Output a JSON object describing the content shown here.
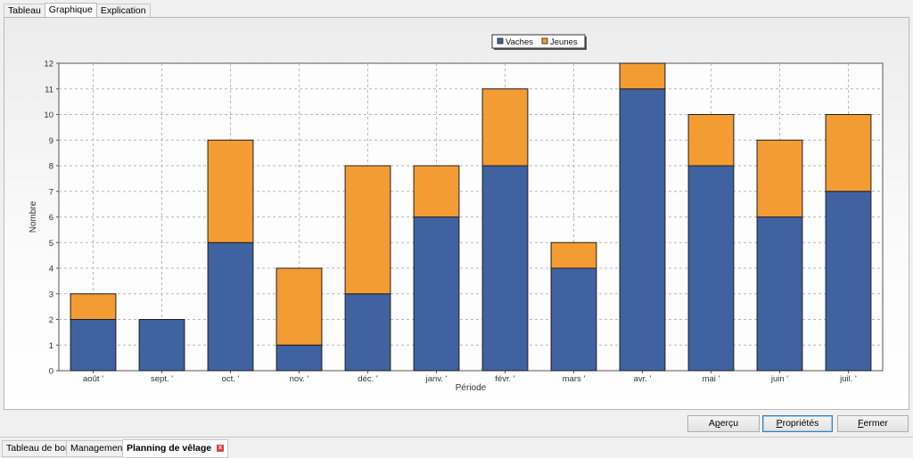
{
  "tabs": [
    {
      "label": "Tableau"
    },
    {
      "label": "Graphique"
    },
    {
      "label": "Explication"
    }
  ],
  "buttons": {
    "apercu_pre": "A",
    "apercu_ul": "p",
    "apercu_post": "erçu",
    "proprietes_pre": "",
    "proprietes_ul": "P",
    "proprietes_post": "ropriétés",
    "fermer_pre": "",
    "fermer_ul": "F",
    "fermer_post": "ermer"
  },
  "bottom_tabs": [
    {
      "label": "Tableau de bord"
    },
    {
      "label": "Management"
    },
    {
      "label": "Planning de vêlage"
    }
  ],
  "colors": {
    "vaches": "#4162a1",
    "jeunes": "#f39c34"
  },
  "chart_data": {
    "type": "bar",
    "stacked": true,
    "categories": [
      "août '",
      "sept. '",
      "oct. '",
      "nov. '",
      "déc. '",
      "janv. '",
      "févr. '",
      "mars '",
      "avr. '",
      "mai '",
      "juin '",
      "juil. '"
    ],
    "series": [
      {
        "name": "Vaches",
        "values": [
          2,
          2,
          5,
          1,
          3,
          6,
          8,
          4,
          11,
          8,
          6,
          7
        ]
      },
      {
        "name": "Jeunes",
        "values": [
          1,
          0,
          4,
          3,
          5,
          2,
          3,
          1,
          1,
          2,
          3,
          3
        ]
      }
    ],
    "xlabel": "Période",
    "ylabel": "Nombre",
    "ylim": [
      0,
      12
    ],
    "yticks": [
      "0",
      "1",
      "2",
      "3",
      "4",
      "5",
      "6",
      "7",
      "8",
      "9",
      "10",
      "11",
      "12"
    ],
    "grid": true,
    "legend": "top-center"
  }
}
